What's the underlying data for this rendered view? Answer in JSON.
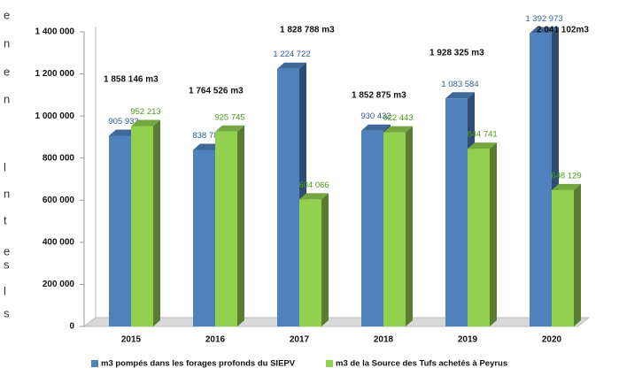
{
  "margin_text": [
    "e",
    "n",
    "e",
    "n",
    "l",
    "n",
    "t",
    "e",
    "s",
    "l",
    "s"
  ],
  "chart_data": {
    "type": "bar3d",
    "categories": [
      "2015",
      "2016",
      "2017",
      "2018",
      "2019",
      "2020"
    ],
    "series": [
      {
        "name": "m3 pompés dans les forages profonds du SIEPV",
        "color": "#4f81bd",
        "values": [
          905933,
          838781,
          1224722,
          930432,
          1083584,
          1392973
        ],
        "value_labels": [
          "905 933",
          "838 781",
          "1 224 722",
          "930 432",
          "1 083 584",
          "1 392 973"
        ]
      },
      {
        "name": "m3 de la Source des Tufs achetés à Peyrus",
        "color": "#92d050",
        "values": [
          952213,
          925745,
          604066,
          922443,
          844741,
          648129
        ],
        "value_labels": [
          "952 213",
          "925 745",
          "604 066",
          "922 443",
          "844 741",
          "648 129"
        ]
      }
    ],
    "annotations": [
      "1 858 146 m3",
      "1 764 526 m3",
      "1 828 788 m3",
      "1 852 875 m3",
      "1 928 325 m3",
      "2 041 102m3"
    ],
    "ylim": [
      0,
      1400000
    ],
    "yticks": [
      0,
      {
        "value": 200000,
        "label": "200 000"
      },
      {
        "value": 400000,
        "label": "400 000"
      },
      {
        "value": 600000,
        "label": "600 000"
      },
      {
        "value": 800000,
        "label": "800 000"
      },
      {
        "value": 1000000,
        "label": "1 000 000"
      },
      {
        "value": 1200000,
        "label": "1 200 000"
      },
      {
        "value": 1400000,
        "label": "1 400 000"
      }
    ],
    "legend": "bottom"
  }
}
